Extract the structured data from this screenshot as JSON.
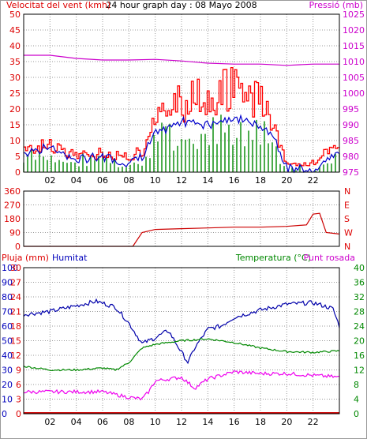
{
  "header": {
    "title": "24 hour graph day : 08 Mayo 2008",
    "left_label": "Velocitat del vent (kmh)",
    "right_label": "Pressió (mb)"
  },
  "colors": {
    "wind": "#ff0000",
    "gust": "#ff0000",
    "avg_wind": "#0000cc",
    "gust_bars": "#008800",
    "pressure": "#cc00cc",
    "direction": "#cc0000",
    "humidity": "#0000aa",
    "temperature": "#008800",
    "dewpoint": "#ee00ee",
    "rain": "#cc0000",
    "grid": "#999999"
  },
  "chart_data": [
    {
      "type": "line",
      "name_ref": "wind-pressure",
      "x_ticks": [
        "02",
        "04",
        "06",
        "08",
        "10",
        "12",
        "14",
        "16",
        "18",
        "20",
        "22"
      ],
      "left_axis": {
        "label": "Velocitat del vent (kmh)",
        "ticks": [
          "0",
          "5",
          "10",
          "15",
          "20",
          "25",
          "30",
          "35",
          "40",
          "45",
          "50"
        ],
        "ylim": [
          0,
          50
        ]
      },
      "right_axis": {
        "label": "Pressió (mb)",
        "ticks": [
          "975",
          "980",
          "985",
          "990",
          "995",
          "1000",
          "1005",
          "1010",
          "1015",
          "1020",
          "1025"
        ],
        "ylim": [
          975,
          1025
        ]
      },
      "pressure": {
        "x": [
          0,
          2,
          4,
          6,
          8,
          10,
          12,
          14,
          16,
          18,
          20,
          22,
          24
        ],
        "y": [
          1012,
          1012,
          1011,
          1010.5,
          1010.5,
          1010.7,
          1010.2,
          1009.5,
          1009.2,
          1009.2,
          1008.8,
          1009.2,
          1009.2
        ]
      },
      "wind_gust": {
        "x": [
          0,
          2,
          4,
          6,
          8,
          9,
          10,
          12,
          14,
          16,
          18,
          19,
          20,
          22,
          24
        ],
        "y": [
          8,
          8,
          5,
          6,
          5,
          7,
          16,
          22,
          25,
          26,
          22,
          15,
          2,
          3,
          10
        ]
      },
      "wind_avg": {
        "x": [
          0,
          2,
          4,
          6,
          8,
          9,
          10,
          12,
          14,
          16,
          18,
          19,
          20,
          22,
          24
        ],
        "y": [
          6,
          8,
          4,
          5,
          3,
          5,
          12,
          16,
          15,
          17,
          15,
          12,
          1,
          1,
          6
        ]
      }
    },
    {
      "type": "line",
      "name_ref": "wind-direction",
      "left_axis": {
        "ticks": [
          "0",
          "90",
          "180",
          "270",
          "360"
        ],
        "ylim": [
          0,
          360
        ]
      },
      "right_axis": {
        "ticks": [
          "N",
          "W",
          "S",
          "E",
          "N"
        ]
      },
      "direction": {
        "x": [
          0,
          8.3,
          9,
          10,
          12,
          14,
          16,
          18,
          20,
          21.5,
          22,
          22.5,
          23,
          24
        ],
        "y": [
          0,
          0,
          90,
          110,
          115,
          120,
          125,
          125,
          130,
          140,
          210,
          215,
          90,
          80
        ]
      }
    },
    {
      "type": "line",
      "name_ref": "rain-humidity-temp",
      "labels": {
        "rain": "Pluja (mm)",
        "humidity": "Humitat",
        "temperature": "Temperatura (°C)",
        "dewpoint": "Punt rosada"
      },
      "rain_axis": {
        "ticks": [
          "0",
          "3",
          "6",
          "9",
          "12",
          "15",
          "18",
          "21",
          "24",
          "27",
          "30"
        ],
        "ylim": [
          0,
          30
        ]
      },
      "humidity_axis": {
        "ticks": [
          "0",
          "10",
          "20",
          "30",
          "40",
          "50",
          "60",
          "70",
          "80",
          "90",
          "100"
        ],
        "ylim": [
          0,
          100
        ]
      },
      "temp_axis": {
        "ticks": [
          "0",
          "4",
          "8",
          "12",
          "16",
          "20",
          "24",
          "28",
          "32",
          "36",
          "40"
        ],
        "ylim": [
          0,
          40
        ]
      },
      "humidity": {
        "x": [
          0,
          2,
          4,
          5.5,
          7,
          8,
          9,
          10,
          11,
          12,
          12.5,
          13,
          14,
          15,
          16,
          18,
          20,
          22,
          23.5,
          24
        ],
        "y": [
          68,
          70,
          74,
          77,
          73,
          62,
          48,
          52,
          57,
          42,
          35,
          45,
          58,
          60,
          66,
          71,
          75,
          76,
          72,
          60
        ]
      },
      "temperature": {
        "x": [
          0,
          2,
          4,
          6,
          7,
          8,
          9,
          10,
          12,
          14,
          16,
          18,
          20,
          22,
          24
        ],
        "y": [
          13,
          12,
          12,
          12.5,
          12,
          14,
          18,
          19,
          20,
          20.5,
          19.5,
          18,
          17,
          16.8,
          17.2
        ]
      },
      "dewpoint": {
        "x": [
          0,
          2,
          4,
          6,
          8,
          9,
          9.5,
          10,
          12,
          13,
          14,
          16,
          18,
          20,
          22,
          24
        ],
        "y": [
          6,
          6,
          6,
          6,
          4.5,
          4,
          6,
          9,
          10,
          7,
          9.5,
          11.5,
          11,
          11,
          10.5,
          10
        ]
      },
      "rain": {
        "x": [
          0,
          24
        ],
        "y": [
          0,
          0
        ]
      }
    }
  ]
}
